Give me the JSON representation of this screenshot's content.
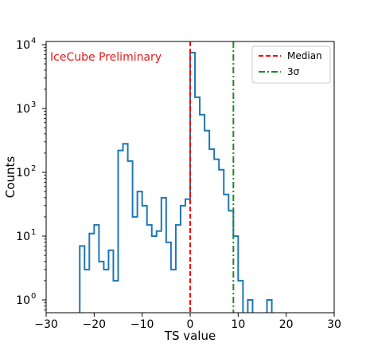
{
  "chart_data": {
    "type": "histogram",
    "xlabel": "TS value",
    "ylabel": "Counts",
    "xlim": [
      -30,
      30
    ],
    "ylim_log10": [
      -0.2,
      4.05
    ],
    "yscale": "log",
    "grid": false,
    "annotation": {
      "text": "IceCube Preliminary",
      "color": "#e41a1c"
    },
    "legend": {
      "placement": "top-right",
      "entries": [
        {
          "name": "Median",
          "color": "#ff0000",
          "style": "dashed"
        },
        {
          "name": "3σ",
          "color": "#228b22",
          "style": "dashdot"
        }
      ]
    },
    "x_ticks": [
      -30,
      -20,
      -10,
      0,
      10,
      20,
      30
    ],
    "x_tick_labels": [
      "−30",
      "−20",
      "−10",
      "0",
      "10",
      "20",
      "30"
    ],
    "y_ticks": [
      {
        "exp": 0,
        "label": "10",
        "sup": "0"
      },
      {
        "exp": 1,
        "label": "10",
        "sup": "1"
      },
      {
        "exp": 2,
        "label": "10",
        "sup": "2"
      },
      {
        "exp": 3,
        "label": "10",
        "sup": "3"
      },
      {
        "exp": 4,
        "label": "10",
        "sup": "4"
      }
    ],
    "vlines": [
      {
        "name": "Median",
        "x": 0.0,
        "color": "#ff0000",
        "style": "dashed"
      },
      {
        "name": "3σ",
        "x": 9.0,
        "color": "#228b22",
        "style": "dashdot"
      }
    ],
    "series": [
      {
        "color": "#1f77b4",
        "bins": [
          {
            "x0": -23.0,
            "x1": -22.0,
            "count": 7
          },
          {
            "x0": -22.0,
            "x1": -21.0,
            "count": 3
          },
          {
            "x0": -21.0,
            "x1": -20.0,
            "count": 11
          },
          {
            "x0": -20.0,
            "x1": -19.0,
            "count": 15
          },
          {
            "x0": -19.0,
            "x1": -18.0,
            "count": 4
          },
          {
            "x0": -18.0,
            "x1": -17.0,
            "count": 3
          },
          {
            "x0": -17.0,
            "x1": -16.0,
            "count": 6
          },
          {
            "x0": -16.0,
            "x1": -15.0,
            "count": 2
          },
          {
            "x0": -15.0,
            "x1": -14.0,
            "count": 220
          },
          {
            "x0": -14.0,
            "x1": -13.0,
            "count": 280
          },
          {
            "x0": -13.0,
            "x1": -12.0,
            "count": 150
          },
          {
            "x0": -12.0,
            "x1": -11.0,
            "count": 20
          },
          {
            "x0": -11.0,
            "x1": -10.0,
            "count": 50
          },
          {
            "x0": -10.0,
            "x1": -9.0,
            "count": 30
          },
          {
            "x0": -9.0,
            "x1": -8.0,
            "count": 15
          },
          {
            "x0": -8.0,
            "x1": -7.0,
            "count": 10
          },
          {
            "x0": -7.0,
            "x1": -6.0,
            "count": 12
          },
          {
            "x0": -6.0,
            "x1": -5.0,
            "count": 40
          },
          {
            "x0": -5.0,
            "x1": -4.0,
            "count": 8
          },
          {
            "x0": -4.0,
            "x1": -3.0,
            "count": 3
          },
          {
            "x0": -3.0,
            "x1": -2.0,
            "count": 15
          },
          {
            "x0": -2.0,
            "x1": -1.0,
            "count": 30
          },
          {
            "x0": -1.0,
            "x1": 0.0,
            "count": 38
          },
          {
            "x0": 0.0,
            "x1": 1.0,
            "count": 7500
          },
          {
            "x0": 1.0,
            "x1": 2.0,
            "count": 1500
          },
          {
            "x0": 2.0,
            "x1": 3.0,
            "count": 800
          },
          {
            "x0": 3.0,
            "x1": 4.0,
            "count": 450
          },
          {
            "x0": 4.0,
            "x1": 5.0,
            "count": 230
          },
          {
            "x0": 5.0,
            "x1": 6.0,
            "count": 160
          },
          {
            "x0": 6.0,
            "x1": 7.0,
            "count": 110
          },
          {
            "x0": 7.0,
            "x1": 8.0,
            "count": 45
          },
          {
            "x0": 8.0,
            "x1": 9.0,
            "count": 25
          },
          {
            "x0": 9.0,
            "x1": 10.0,
            "count": 10
          },
          {
            "x0": 10.0,
            "x1": 11.0,
            "count": 2
          },
          {
            "x0": 11.0,
            "x1": 12.0,
            "count": 0
          },
          {
            "x0": 12.0,
            "x1": 13.0,
            "count": 1
          },
          {
            "x0": 13.0,
            "x1": 14.0,
            "count": 0
          },
          {
            "x0": 14.0,
            "x1": 15.0,
            "count": 0
          },
          {
            "x0": 15.0,
            "x1": 16.0,
            "count": 0
          },
          {
            "x0": 16.0,
            "x1": 17.0,
            "count": 1
          }
        ]
      }
    ]
  }
}
